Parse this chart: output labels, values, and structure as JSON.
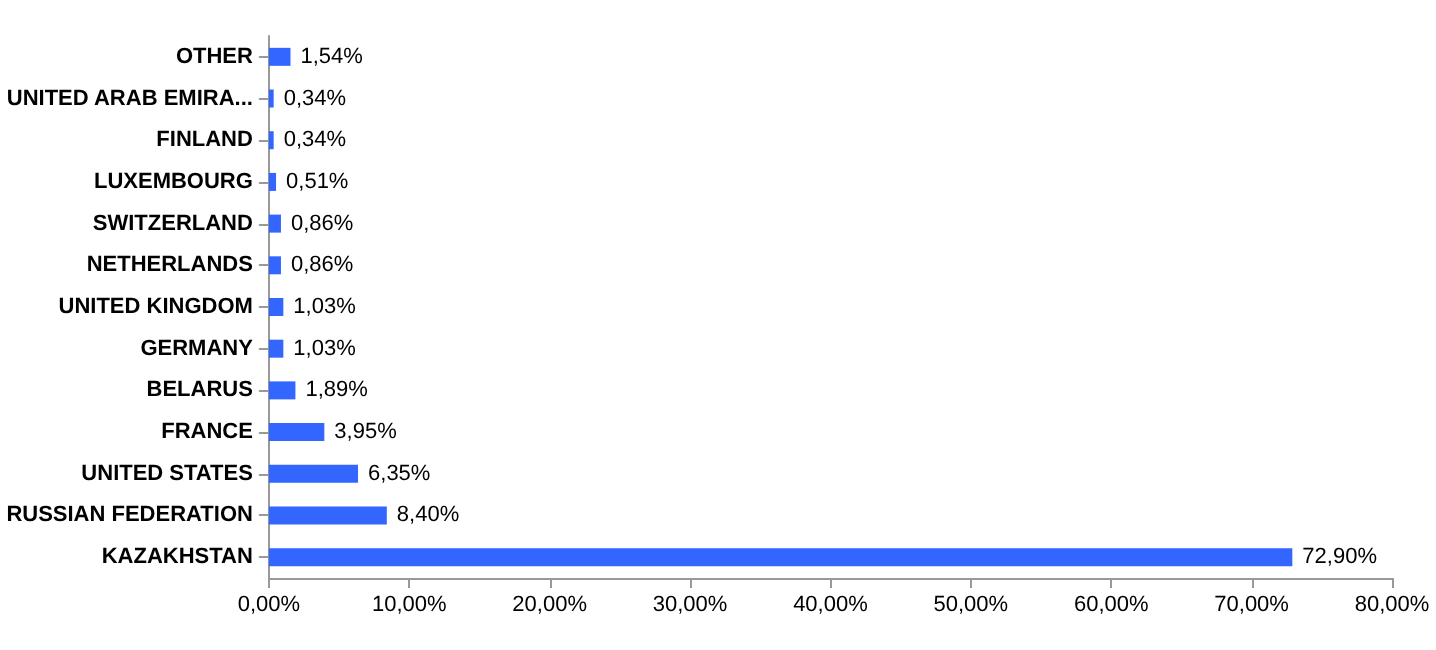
{
  "chart_data": {
    "type": "bar",
    "orientation": "horizontal",
    "categories": [
      "OTHER",
      "UNITED ARAB EMIRA...",
      "FINLAND",
      "LUXEMBOURG",
      "SWITZERLAND",
      "NETHERLANDS",
      "UNITED KINGDOM",
      "GERMANY",
      "BELARUS",
      "FRANCE",
      "UNITED STATES",
      "RUSSIAN FEDERATION",
      "KAZAKHSTAN"
    ],
    "values": [
      1.54,
      0.34,
      0.34,
      0.51,
      0.86,
      0.86,
      1.03,
      1.03,
      1.89,
      3.95,
      6.35,
      8.4,
      72.9
    ],
    "value_labels": [
      "1,54%",
      "0,34%",
      "0,34%",
      "0,51%",
      "0,86%",
      "0,86%",
      "1,03%",
      "1,03%",
      "1,89%",
      "3,95%",
      "6,35%",
      "8,40%",
      "72,90%"
    ],
    "color": "#3366ff",
    "xlim": [
      0,
      80
    ],
    "xticks": [
      {
        "value": 0,
        "label": "0,00%"
      },
      {
        "value": 10,
        "label": "10,00%"
      },
      {
        "value": 20,
        "label": "20,00%"
      },
      {
        "value": 30,
        "label": "30,00%"
      },
      {
        "value": 40,
        "label": "40,00%"
      },
      {
        "value": 50,
        "label": "50,00%"
      },
      {
        "value": 60,
        "label": "60,00%"
      },
      {
        "value": 70,
        "label": "70,00%"
      },
      {
        "value": 80,
        "label": "80,00%"
      }
    ],
    "grid": false
  }
}
